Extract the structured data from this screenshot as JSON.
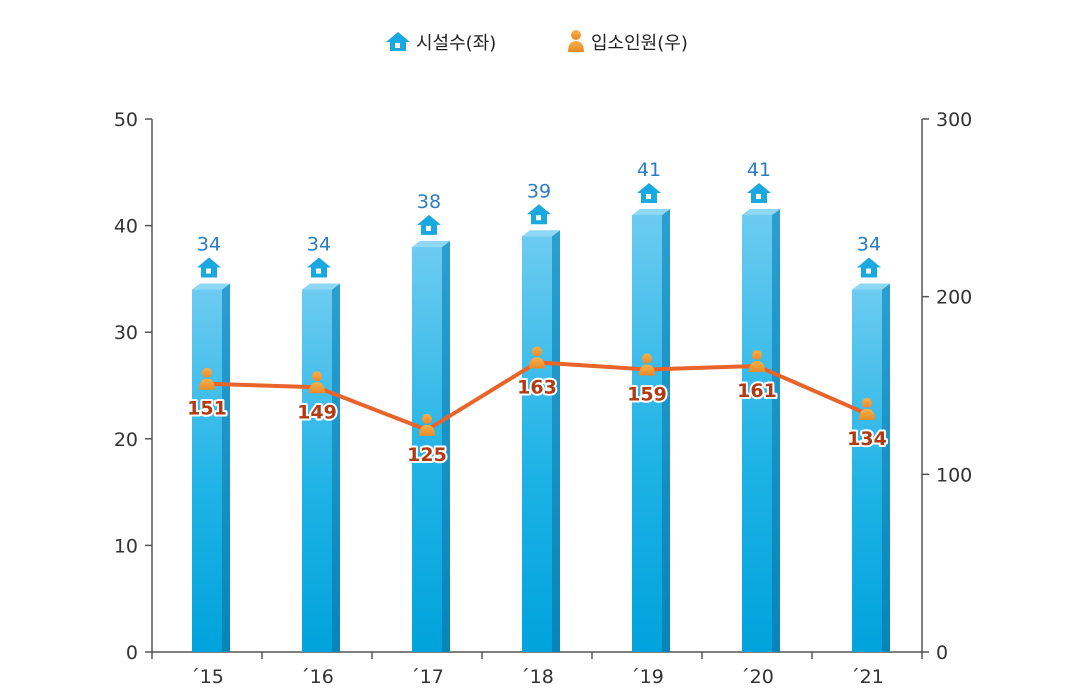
{
  "legend": {
    "facilities_label": "시설수(좌)",
    "residents_label": "입소인원(우)"
  },
  "chart_data": {
    "type": "bar",
    "categories": [
      "´15",
      "´16",
      "´17",
      "´18",
      "´19",
      "´20",
      "´21"
    ],
    "series": [
      {
        "name": "시설수(좌)",
        "type": "bar",
        "axis": "left",
        "values": [
          34,
          34,
          38,
          39,
          41,
          41,
          34
        ],
        "color": "#19b1e6"
      },
      {
        "name": "입소인원(우)",
        "type": "line",
        "axis": "right",
        "values": [
          151,
          149,
          125,
          163,
          159,
          161,
          134
        ],
        "color": "#e8642b"
      }
    ],
    "y_left": {
      "min": 0,
      "max": 50,
      "ticks": [
        0,
        10,
        20,
        30,
        40,
        50
      ]
    },
    "y_right": {
      "min": 0,
      "max": 300,
      "ticks": [
        0,
        100,
        200,
        300
      ]
    },
    "grid": false,
    "legend_position": "top-center",
    "title": "",
    "xlabel": "",
    "ylabel": ""
  }
}
